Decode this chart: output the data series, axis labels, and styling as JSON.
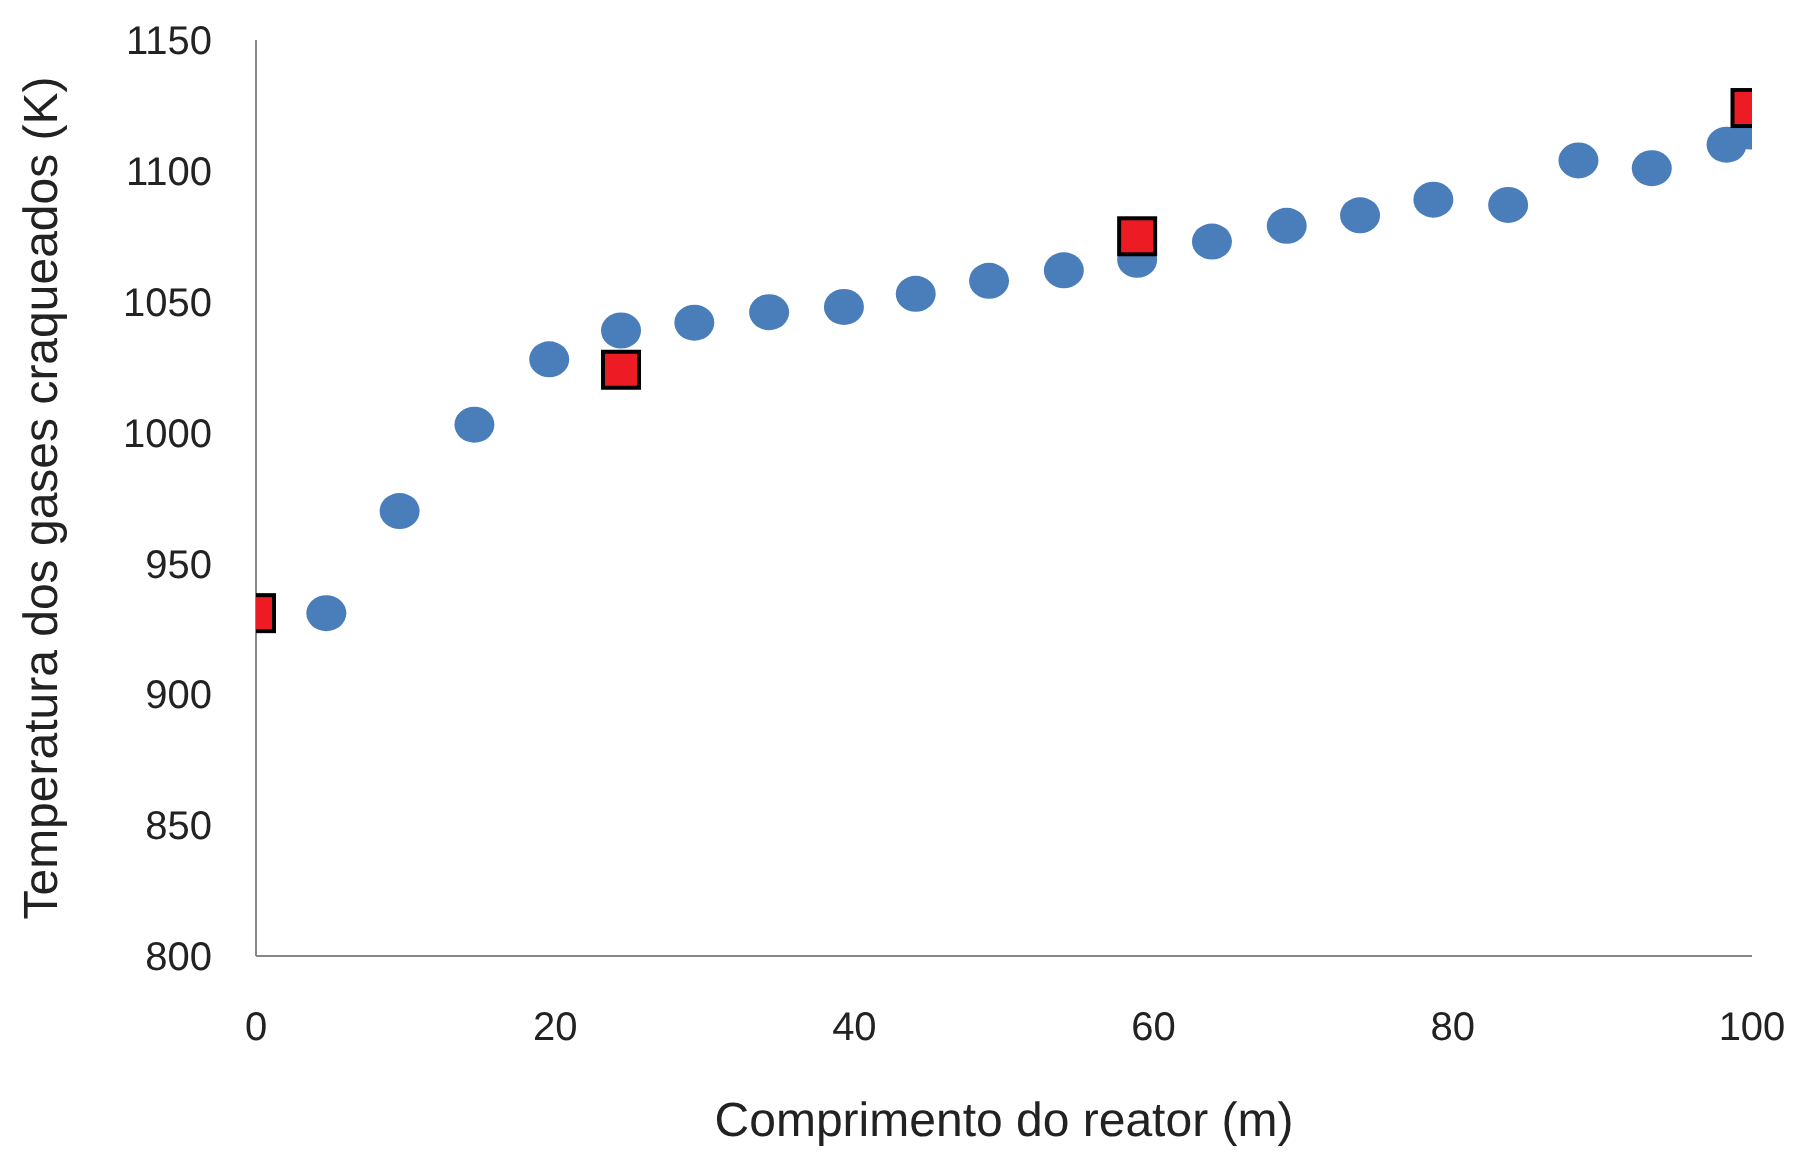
{
  "chart_data": {
    "type": "scatter",
    "xlabel": "Comprimento do reator (m)",
    "ylabel": "Temperatura dos gases craqueados (K)",
    "xlim": [
      0,
      100
    ],
    "xticks": [
      0,
      20,
      40,
      60,
      80,
      100
    ],
    "ylim": [
      800,
      1150
    ],
    "yticks": [
      800,
      850,
      900,
      950,
      1000,
      1050,
      1100,
      1150
    ],
    "grid": false,
    "legend": false,
    "series": [
      {
        "color": "#4a7ebb",
        "marker": "circle",
        "x": [
          4.7,
          9.6,
          14.6,
          19.6,
          24.4,
          29.3,
          34.3,
          39.3,
          44.1,
          49,
          54,
          58.9,
          63.9,
          68.9,
          73.8,
          78.7,
          83.7,
          88.4,
          93.3,
          98.3,
          99.9
        ],
        "values": [
          931,
          970,
          1003,
          1028,
          1039,
          1042,
          1046,
          1048,
          1053,
          1058,
          1062,
          1066,
          1073,
          1079,
          1083,
          1089,
          1087,
          1104,
          1101,
          1110,
          1115
        ]
      },
      {
        "color": "#ed1c24",
        "marker": "square",
        "x": [
          0,
          24.4,
          58.9,
          99.9
        ],
        "values": [
          931,
          1024,
          1075,
          1124
        ]
      }
    ]
  }
}
